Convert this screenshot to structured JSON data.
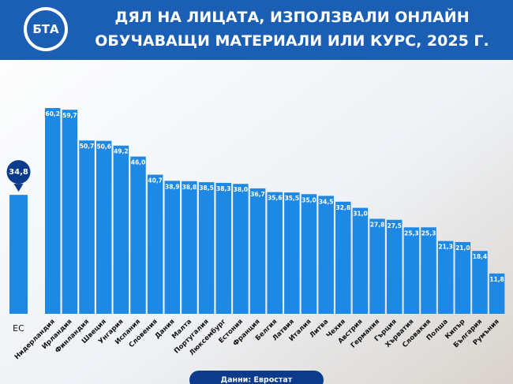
{
  "logo": "БТА",
  "chart_data": {
    "type": "bar",
    "title_lines": [
      "ДЯЛ НА ЛИЦАТА, ИЗПОЛЗВАЛИ ОНЛАЙН",
      "ОБУЧАВАЩИ МАТЕРИАЛИ ИЛИ КУРС, 2025 Г."
    ],
    "categories": [
      "Нидерландия",
      "Ирландия",
      "Финландия",
      "Швеция",
      "Унгария",
      "Испания",
      "Словения",
      "Дания",
      "Малта",
      "Португалия",
      "Люксембург",
      "Естония",
      "Франция",
      "Белгия",
      "Латвия",
      "Италия",
      "Литва",
      "Чехия",
      "Австрия",
      "Германия",
      "Гърция",
      "Хърватия",
      "Словакия",
      "Полша",
      "Кипър",
      "България",
      "Румъния"
    ],
    "values": [
      60.2,
      59.7,
      50.7,
      50.6,
      49.2,
      46.0,
      40.7,
      38.9,
      38.8,
      38.5,
      38.3,
      38.0,
      36.7,
      35.6,
      35.5,
      35.0,
      34.5,
      32.8,
      31.0,
      27.8,
      27.5,
      25.3,
      25.3,
      21.3,
      21.0,
      18.4,
      11.8
    ],
    "value_labels": [
      "60,2",
      "59,7",
      "50,7",
      "50,6",
      "49,2",
      "46,0",
      "40,7",
      "38,9",
      "38,8",
      "38,5",
      "38,3",
      "38,0",
      "36,7",
      "35,6",
      "35,5",
      "35,0",
      "34,5",
      "32,8",
      "31,0",
      "27,8",
      "27,5",
      "25,3",
      "25,3",
      "21,3",
      "21,0",
      "18,4",
      "11,8"
    ],
    "color": "#1e88e5",
    "reference": {
      "category": "ЕС",
      "value": 34.8,
      "value_label": "34,8"
    },
    "source": "Данни: Евростат"
  }
}
